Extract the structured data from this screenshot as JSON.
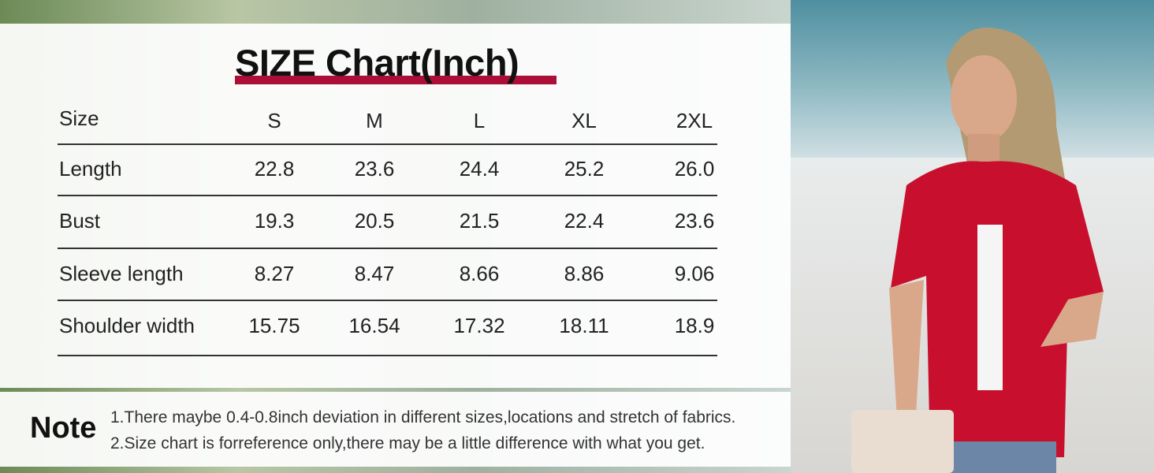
{
  "title": "SIZE Chart(Inch)",
  "accent_color": "#ad0e37",
  "table": {
    "headers": [
      "Size",
      "S",
      "M",
      "L",
      "XL",
      "2XL"
    ],
    "rows": [
      {
        "label": "Length",
        "values": [
          "22.8",
          "23.6",
          "24.4",
          "25.2",
          "26.0"
        ]
      },
      {
        "label": "Bust",
        "values": [
          "19.3",
          "20.5",
          "21.5",
          "22.4",
          "23.6"
        ]
      },
      {
        "label": "Sleeve length",
        "values": [
          "8.27",
          "8.47",
          "8.66",
          "8.86",
          "9.06"
        ]
      },
      {
        "label": "Shoulder width",
        "values": [
          "15.75",
          "16.54",
          "17.32",
          "18.11",
          "18.9"
        ]
      }
    ]
  },
  "note": {
    "heading": "Note",
    "lines": [
      "1.There maybe 0.4-0.8inch deviation in different sizes,locations and stretch of fabrics.",
      "2.Size chart is forreference only,there may be a little difference with what you get."
    ]
  },
  "product_color": "#c8102e"
}
